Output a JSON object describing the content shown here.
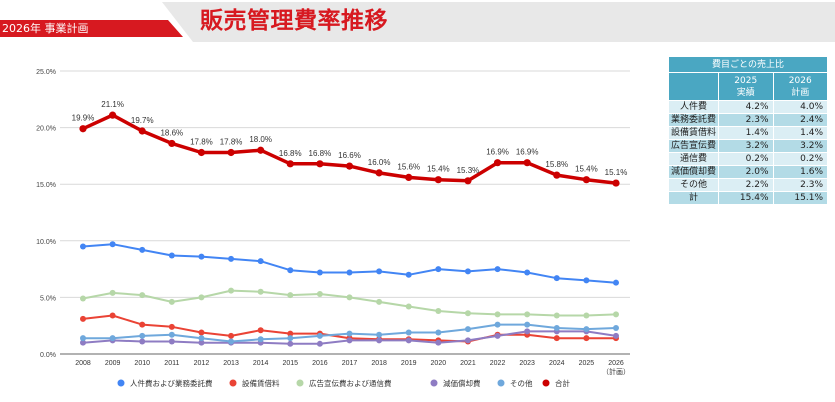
{
  "header": {
    "subtitle": "2026年 事業計画",
    "title": "販売管理費率推移"
  },
  "colors": {
    "brand_red": "#d71920",
    "header_gray": "#e8e8e8",
    "table_header": "#4aa7c2",
    "table_row_light": "#dbeef4",
    "table_row_dark": "#b3dbe6"
  },
  "table": {
    "title": "費目ごとの売上比",
    "col1_year": "2025",
    "col1_sub": "実績",
    "col2_year": "2026",
    "col2_sub": "計画",
    "rows": [
      {
        "label": "人件費",
        "v2025": "4.2%",
        "v2026": "4.0%"
      },
      {
        "label": "業務委託費",
        "v2025": "2.3%",
        "v2026": "2.4%"
      },
      {
        "label": "設備賃借料",
        "v2025": "1.4%",
        "v2026": "1.4%"
      },
      {
        "label": "広告宣伝費",
        "v2025": "3.2%",
        "v2026": "3.2%"
      },
      {
        "label": "通信費",
        "v2025": "0.2%",
        "v2026": "0.2%"
      },
      {
        "label": "減価償却費",
        "v2025": "2.0%",
        "v2026": "1.6%"
      },
      {
        "label": "その他",
        "v2025": "2.2%",
        "v2026": "2.3%"
      },
      {
        "label": "計",
        "v2025": "15.4%",
        "v2026": "15.1%"
      }
    ]
  },
  "chart_data": {
    "type": "line",
    "title": "",
    "xlabel": "",
    "ylabel": "",
    "ylim": [
      0,
      25
    ],
    "yticks": [
      0,
      5,
      10,
      15,
      20,
      25
    ],
    "ytick_labels": [
      "0.0%",
      "5.0%",
      "10.0%",
      "15.0%",
      "20.0%",
      "25.0%"
    ],
    "grid": true,
    "legend_position": "bottom",
    "categories": [
      "2008",
      "2009",
      "2010",
      "2011",
      "2012",
      "2013",
      "2014",
      "2015",
      "2016",
      "2017",
      "2018",
      "2019",
      "2020",
      "2021",
      "2022",
      "2023",
      "2024",
      "2025",
      "2026"
    ],
    "last_category_note": "（計画）",
    "series": [
      {
        "name": "人件費および業務委託費",
        "color": "#4285f4",
        "width": 2,
        "values": [
          9.5,
          9.7,
          9.2,
          8.7,
          8.6,
          8.4,
          8.2,
          7.4,
          7.2,
          7.2,
          7.3,
          7.0,
          7.5,
          7.3,
          7.5,
          7.2,
          6.7,
          6.5,
          6.3
        ]
      },
      {
        "name": "設備賃借料",
        "color": "#ea4335",
        "width": 2,
        "values": [
          3.1,
          3.4,
          2.6,
          2.4,
          1.9,
          1.6,
          2.1,
          1.8,
          1.8,
          1.4,
          1.3,
          1.3,
          1.2,
          1.1,
          1.7,
          1.7,
          1.4,
          1.4,
          1.4
        ]
      },
      {
        "name": "広告宣伝費および通信費",
        "color": "#b6d7a8",
        "width": 2,
        "values": [
          4.9,
          5.4,
          5.2,
          4.6,
          5.0,
          5.6,
          5.5,
          5.2,
          5.3,
          5.0,
          4.6,
          4.2,
          3.8,
          3.6,
          3.5,
          3.5,
          3.4,
          3.4,
          3.5
        ]
      },
      {
        "name": "減価償却費",
        "color": "#8e7cc3",
        "width": 2,
        "values": [
          1.0,
          1.2,
          1.1,
          1.1,
          1.0,
          1.0,
          1.0,
          0.9,
          0.9,
          1.2,
          1.2,
          1.2,
          1.0,
          1.2,
          1.6,
          2.0,
          2.0,
          2.0,
          1.6
        ]
      },
      {
        "name": "その他",
        "color": "#6fa8dc",
        "width": 2,
        "values": [
          1.4,
          1.4,
          1.6,
          1.7,
          1.4,
          1.1,
          1.3,
          1.4,
          1.6,
          1.8,
          1.7,
          1.9,
          1.9,
          2.2,
          2.6,
          2.6,
          2.3,
          2.2,
          2.3
        ]
      },
      {
        "name": "合計",
        "color": "#cc0000",
        "width": 3.5,
        "values": [
          19.9,
          21.1,
          19.7,
          18.6,
          17.8,
          17.8,
          18.0,
          16.8,
          16.8,
          16.6,
          16.0,
          15.6,
          15.4,
          15.3,
          16.9,
          16.9,
          15.8,
          15.4,
          15.1
        ],
        "labels": [
          "19.9%",
          "21.1%",
          "19.7%",
          "18.6%",
          "17.8%",
          "17.8%",
          "18.0%",
          "16.8%",
          "16.8%",
          "16.6%",
          "16.0%",
          "15.6%",
          "15.4%",
          "15.3%",
          "16.9%",
          "16.9%",
          "15.8%",
          "15.4%",
          "15.1%"
        ]
      }
    ]
  }
}
